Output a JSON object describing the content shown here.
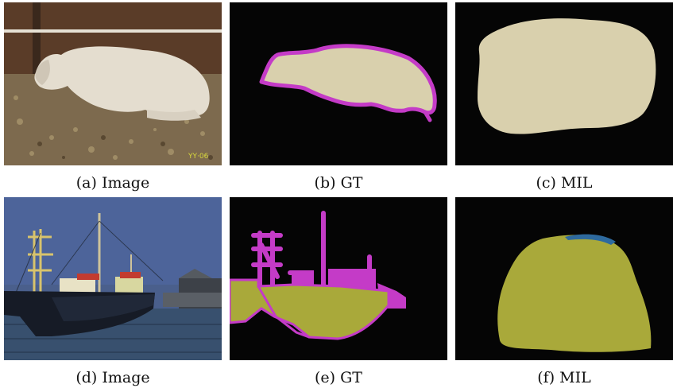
{
  "figure": {
    "panels": [
      {
        "caption": "(a) Image",
        "kind": "photo",
        "subject": "sheep"
      },
      {
        "caption": "(b) GT",
        "kind": "segmentation",
        "class_color": "#d9d0ad",
        "boundary_color": "#c43bc7"
      },
      {
        "caption": "(c) MIL",
        "kind": "segmentation",
        "class_color": "#d9d0ad"
      },
      {
        "caption": "(d) Image",
        "kind": "photo",
        "subject": "boats"
      },
      {
        "caption": "(e) GT",
        "kind": "segmentation",
        "class_color": "#a9a93a",
        "boundary_color": "#c43bc7"
      },
      {
        "caption": "(f) MIL",
        "kind": "segmentation",
        "class_color": "#a9a93a",
        "secondary_color": "#2e6a9e"
      }
    ],
    "colors": {
      "background": "#050505",
      "sheep": "#d9d0ad",
      "boat": "#a9a93a",
      "void": "#c43bc7",
      "error": "#2e6a9e"
    }
  }
}
